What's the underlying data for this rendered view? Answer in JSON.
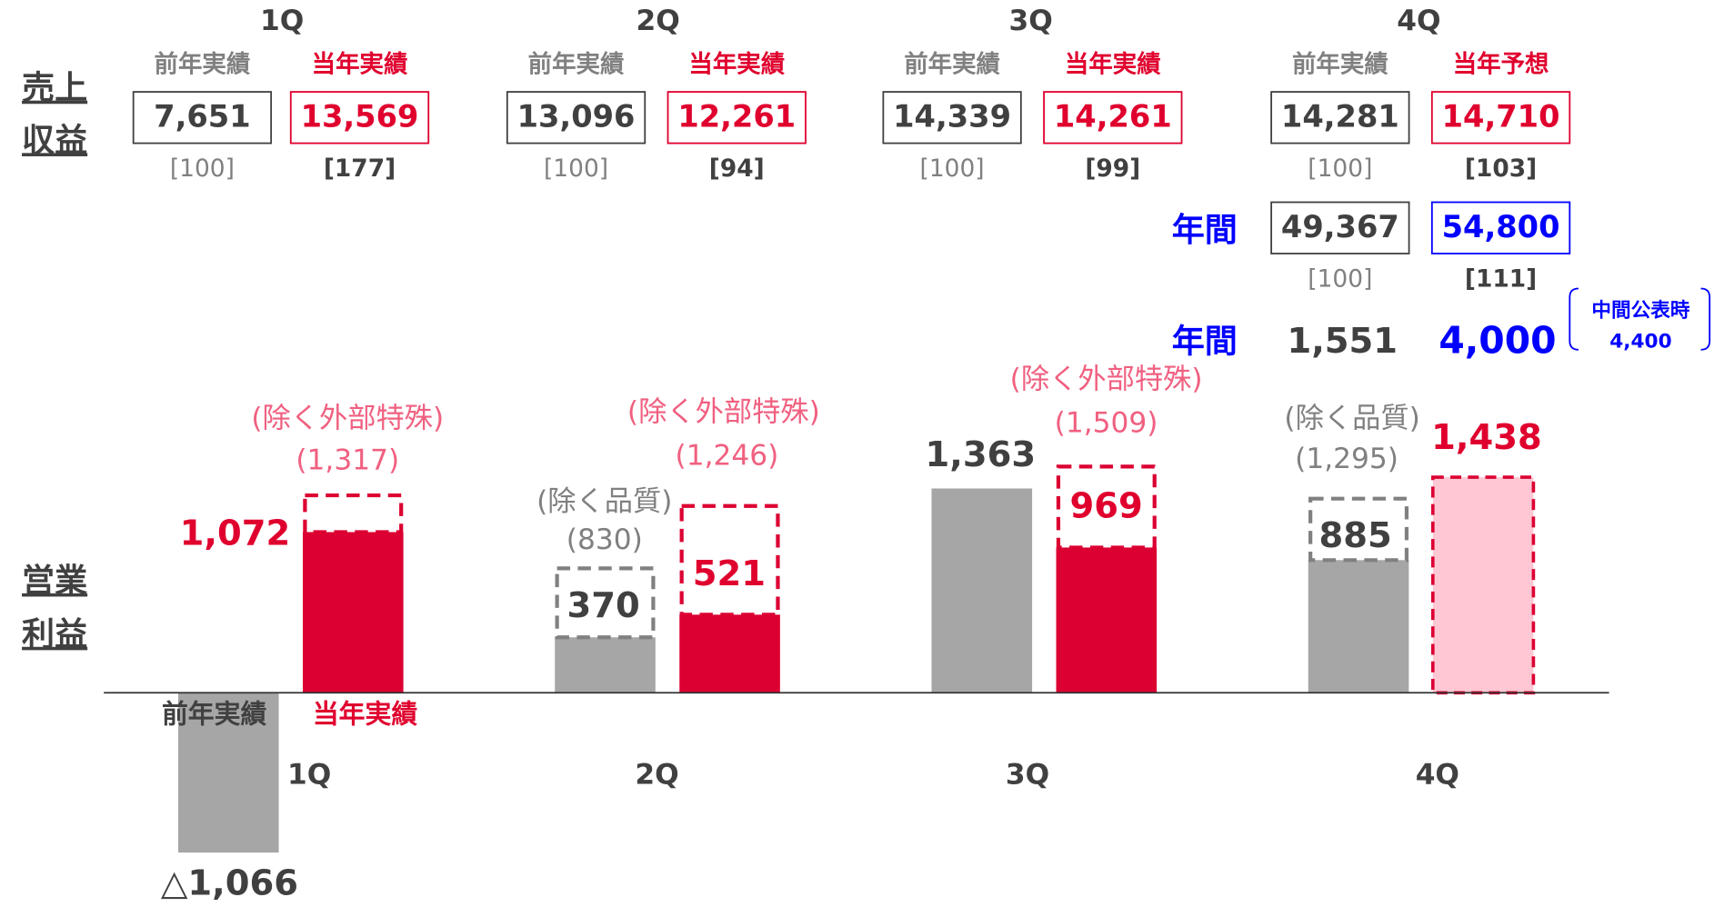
{
  "chart_data": {
    "type": "bar",
    "categories": [
      "1Q",
      "2Q",
      "3Q",
      "4Q"
    ],
    "ylim": [
      -1200,
      4000
    ],
    "revenue": {
      "row_label": [
        "売上",
        "収益"
      ],
      "quarters": [
        "1Q",
        "2Q",
        "3Q",
        "4Q"
      ],
      "column_headers": [
        [
          "前年実績",
          "当年実績"
        ],
        [
          "前年実績",
          "当年実績"
        ],
        [
          "前年実績",
          "当年実績"
        ],
        [
          "前年実績",
          "当年予想"
        ]
      ],
      "previous": [
        "7,651",
        "13,096",
        "14,339",
        "14,281"
      ],
      "current": [
        "13,569",
        "12,261",
        "14,261",
        "14,710"
      ],
      "previous_index": [
        "[100]",
        "[100]",
        "[100]",
        "[100]"
      ],
      "current_index": [
        "[177]",
        "[94]",
        "[99]",
        "[103]"
      ],
      "annual": {
        "label": "年間",
        "previous": "49,367",
        "current": "54,800",
        "previous_index": "[100]",
        "current_index": "[111]"
      }
    },
    "profit_label": [
      "営業",
      "利益"
    ],
    "annual_profit": {
      "label": "年間",
      "previous": "1,551",
      "current": "4,000",
      "interim_note": "中間公表時",
      "interim": "4,400"
    },
    "series": [
      {
        "name": "前年実績",
        "color": "#a6a6a6",
        "values": [
          -1066,
          370,
          1363,
          885
        ],
        "value_labels": [
          "△1,066",
          "370",
          "1,363",
          "885"
        ],
        "adjusted_values": [
          null,
          830,
          null,
          1295
        ],
        "adjusted_labels": [
          null,
          "(830)",
          null,
          "(1,295)"
        ],
        "adjusted_notes": [
          null,
          "(除く品質)",
          null,
          "(除く品質)"
        ]
      },
      {
        "name": "当年実績",
        "color": "#dc0032",
        "values": [
          1072,
          521,
          969,
          1438
        ],
        "value_labels": [
          "1,072",
          "521",
          "969",
          "1,438"
        ],
        "adjusted_values": [
          1317,
          1246,
          1509,
          null
        ],
        "adjusted_labels": [
          "(1,317)",
          "(1,246)",
          "(1,509)",
          null
        ],
        "adjusted_notes": [
          "(除く外部特殊)",
          "(除く外部特殊)",
          "(除く外部特殊)",
          null
        ],
        "forecast_color": "#ffc7d3",
        "forecast": [
          false,
          false,
          false,
          true
        ]
      }
    ]
  }
}
